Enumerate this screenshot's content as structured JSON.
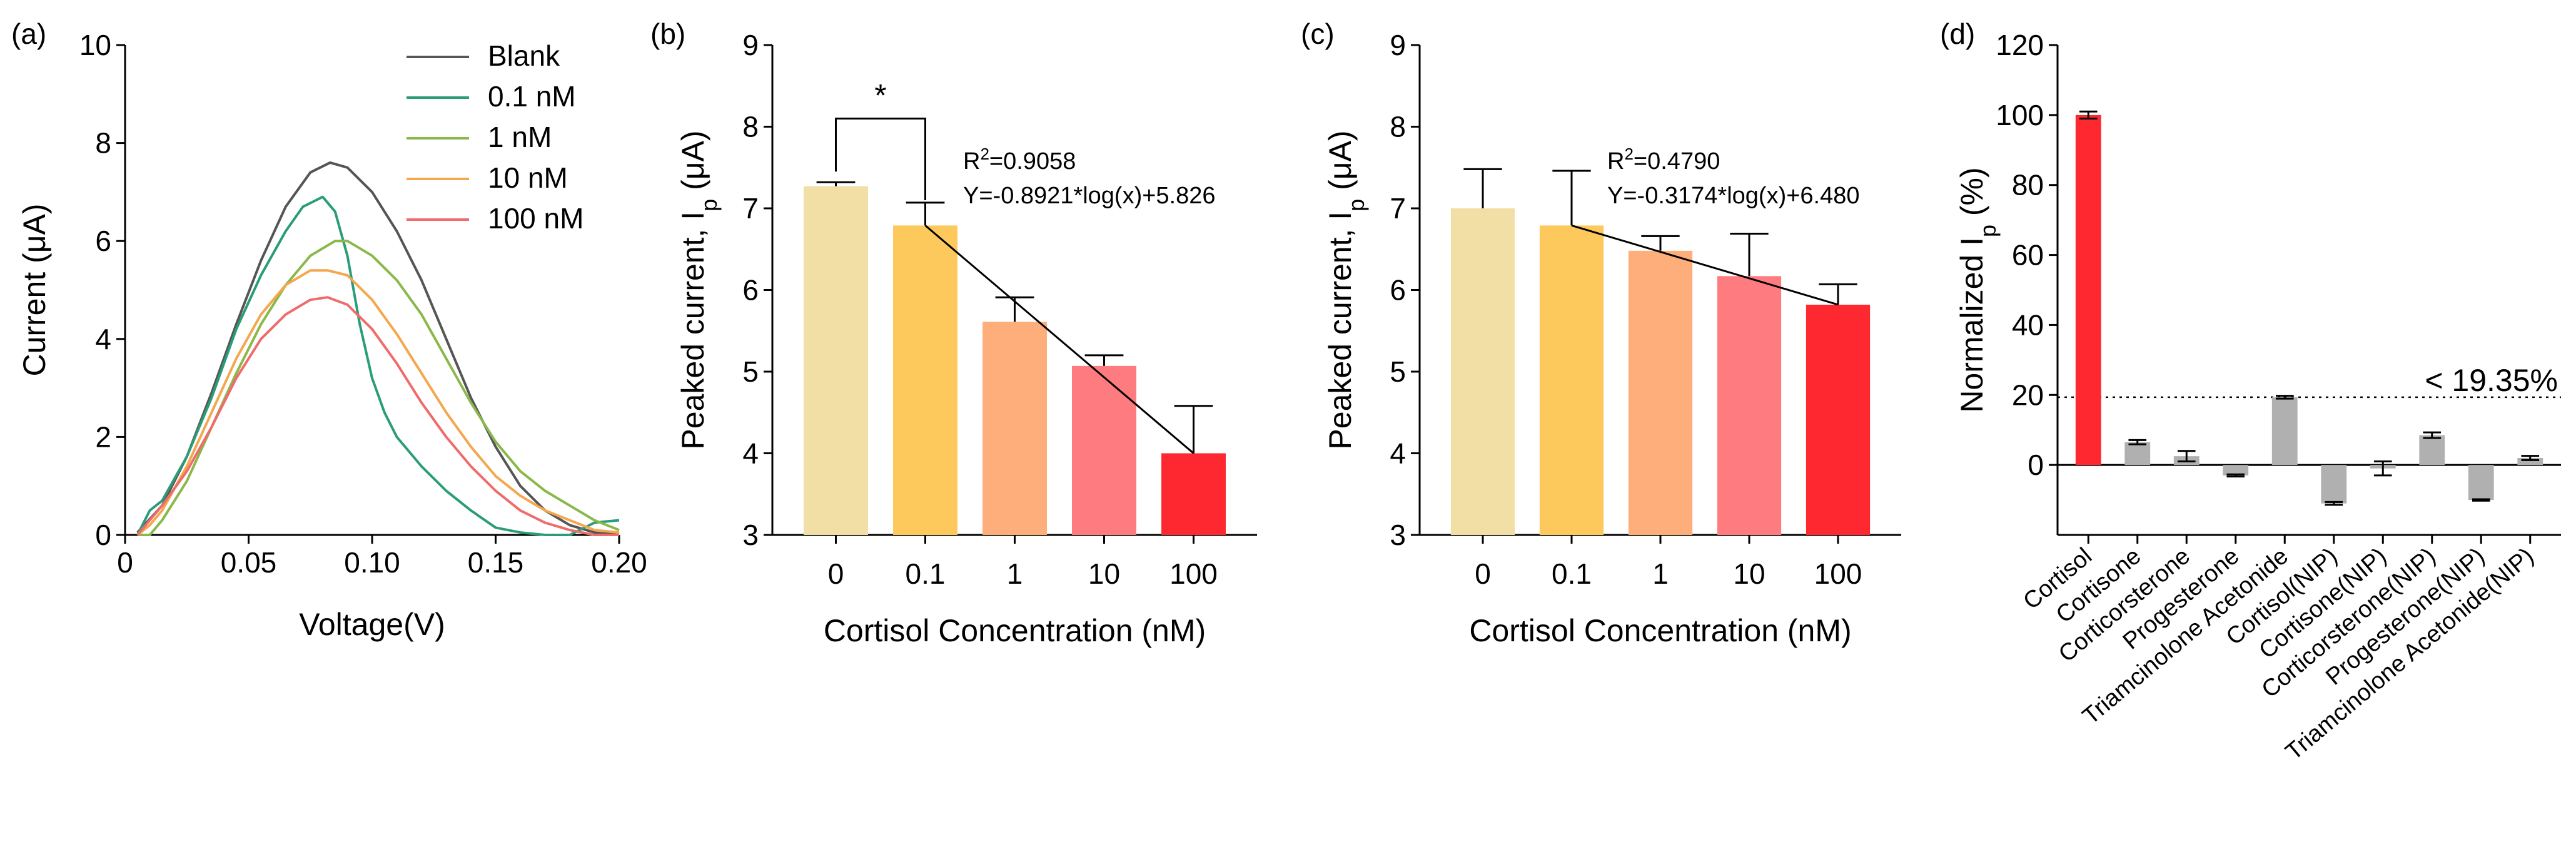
{
  "figure": {
    "panel_labels": [
      "(a)",
      "(b)",
      "(c)",
      "(d)"
    ]
  },
  "chart_data": [
    {
      "id": "a",
      "type": "line",
      "title": "",
      "xlabel": "Voltage(V)",
      "ylabel": "Current (μA)",
      "xlim": [
        0,
        0.2
      ],
      "ylim": [
        0,
        10
      ],
      "xticks": [
        0,
        0.05,
        0.1,
        0.15,
        0.2
      ],
      "xtick_labels": [
        "0",
        "0.05",
        "0.10",
        "0.15",
        "0.20"
      ],
      "yticks": [
        0,
        2,
        4,
        6,
        8,
        10
      ],
      "ytick_labels": [
        "0",
        "2",
        "4",
        "6",
        "8",
        "10"
      ],
      "legend_position": "top-right",
      "series": [
        {
          "name": "Blank",
          "color": "#555555",
          "x": [
            0.005,
            0.015,
            0.025,
            0.035,
            0.045,
            0.055,
            0.065,
            0.075,
            0.083,
            0.09,
            0.1,
            0.11,
            0.12,
            0.13,
            0.14,
            0.15,
            0.16,
            0.17,
            0.18,
            0.19,
            0.2
          ],
          "y": [
            0.05,
            0.6,
            1.6,
            2.9,
            4.3,
            5.6,
            6.7,
            7.4,
            7.6,
            7.5,
            7.0,
            6.2,
            5.2,
            4.0,
            2.8,
            1.8,
            1.0,
            0.5,
            0.2,
            0.05,
            0.0
          ]
        },
        {
          "name": "0.1 nM",
          "color": "#2a9d78",
          "x": [
            0.005,
            0.01,
            0.015,
            0.025,
            0.035,
            0.045,
            0.055,
            0.065,
            0.072,
            0.08,
            0.085,
            0.09,
            0.095,
            0.1,
            0.105,
            0.11,
            0.12,
            0.13,
            0.14,
            0.15,
            0.16,
            0.17,
            0.18,
            0.19,
            0.2
          ],
          "y": [
            0.0,
            0.5,
            0.7,
            1.6,
            2.8,
            4.2,
            5.3,
            6.2,
            6.7,
            6.9,
            6.6,
            5.7,
            4.3,
            3.2,
            2.5,
            2.0,
            1.4,
            0.9,
            0.5,
            0.15,
            0.05,
            0.0,
            0.0,
            0.25,
            0.3
          ]
        },
        {
          "name": "1 nM",
          "color": "#8ab84a",
          "x": [
            0.005,
            0.01,
            0.015,
            0.025,
            0.035,
            0.045,
            0.055,
            0.065,
            0.075,
            0.085,
            0.09,
            0.1,
            0.11,
            0.12,
            0.13,
            0.14,
            0.15,
            0.16,
            0.17,
            0.18,
            0.19,
            0.2
          ],
          "y": [
            0.0,
            0.0,
            0.3,
            1.1,
            2.2,
            3.3,
            4.3,
            5.1,
            5.7,
            6.0,
            6.0,
            5.7,
            5.2,
            4.5,
            3.6,
            2.7,
            1.9,
            1.3,
            0.9,
            0.6,
            0.3,
            0.1
          ]
        },
        {
          "name": "10 nM",
          "color": "#f4a74d",
          "x": [
            0.005,
            0.01,
            0.015,
            0.025,
            0.035,
            0.045,
            0.055,
            0.065,
            0.075,
            0.082,
            0.09,
            0.1,
            0.11,
            0.12,
            0.13,
            0.14,
            0.15,
            0.16,
            0.17,
            0.18,
            0.19,
            0.2
          ],
          "y": [
            0.0,
            0.2,
            0.5,
            1.4,
            2.5,
            3.6,
            4.5,
            5.1,
            5.4,
            5.4,
            5.3,
            4.8,
            4.1,
            3.3,
            2.5,
            1.8,
            1.2,
            0.8,
            0.5,
            0.3,
            0.1,
            0.05
          ]
        },
        {
          "name": "100 nM",
          "color": "#f06b6b",
          "x": [
            0.005,
            0.01,
            0.015,
            0.025,
            0.035,
            0.045,
            0.055,
            0.065,
            0.075,
            0.082,
            0.09,
            0.1,
            0.11,
            0.12,
            0.13,
            0.14,
            0.15,
            0.16,
            0.17,
            0.18,
            0.19,
            0.2
          ],
          "y": [
            0.0,
            0.3,
            0.6,
            1.3,
            2.2,
            3.2,
            4.0,
            4.5,
            4.8,
            4.85,
            4.7,
            4.2,
            3.5,
            2.7,
            2.0,
            1.4,
            0.9,
            0.5,
            0.25,
            0.1,
            0.0,
            0.0
          ]
        }
      ]
    },
    {
      "id": "b",
      "type": "bar",
      "xlabel": "Cortisol Concentration (nM)",
      "ylabel": "Peaked current, I",
      "ylabel_sub": "p",
      "ylabel_unit": " (μA)",
      "ylim": [
        3,
        9
      ],
      "yticks": [
        3,
        4,
        5,
        6,
        7,
        8,
        9
      ],
      "ytick_labels": [
        "3",
        "4",
        "5",
        "6",
        "7",
        "8",
        "9"
      ],
      "categories": [
        "0",
        "0.1",
        "1",
        "10",
        "100"
      ],
      "values": [
        7.27,
        6.79,
        5.61,
        5.07,
        4.0
      ],
      "errors": [
        0.05,
        0.28,
        0.3,
        0.13,
        0.58
      ],
      "colors": [
        "#f2dfa6",
        "#fdc95c",
        "#fdae7a",
        "#fe7c7f",
        "#fe2830"
      ],
      "fit_equation_r2_prefix": "R",
      "fit_equation_r2_sup": "2",
      "fit_equation_r2_value": "=0.9058",
      "fit_equation": "Y=-0.8921*log(x)+5.826",
      "fit_line": {
        "from_category_index": 1,
        "from_value": 6.79,
        "to_category_index": 4,
        "to_value": 4.0
      },
      "significance": {
        "between": [
          0,
          1
        ],
        "label": "*"
      }
    },
    {
      "id": "c",
      "type": "bar",
      "xlabel": "Cortisol Concentration (nM)",
      "ylabel": "Peaked current, I",
      "ylabel_sub": "p",
      "ylabel_unit": " (μA)",
      "ylim": [
        3,
        9
      ],
      "yticks": [
        3,
        4,
        5,
        6,
        7,
        8,
        9
      ],
      "ytick_labels": [
        "3",
        "4",
        "5",
        "6",
        "7",
        "8",
        "9"
      ],
      "categories": [
        "0",
        "0.1",
        "1",
        "10",
        "100"
      ],
      "values": [
        7.0,
        6.79,
        6.48,
        6.17,
        5.82
      ],
      "errors": [
        0.48,
        0.67,
        0.18,
        0.52,
        0.25
      ],
      "colors": [
        "#f2dfa6",
        "#fdc95c",
        "#fdae7a",
        "#fe7c7f",
        "#fe2830"
      ],
      "fit_equation_r2_prefix": "R",
      "fit_equation_r2_sup": "2",
      "fit_equation_r2_value": "=0.4790",
      "fit_equation": "Y=-0.3174*log(x)+6.480",
      "fit_line": {
        "from_category_index": 1,
        "from_value": 6.79,
        "to_category_index": 4,
        "to_value": 5.82
      }
    },
    {
      "id": "d",
      "type": "bar",
      "xlabel": "",
      "ylabel": "Normalized I",
      "ylabel_sub": "p",
      "ylabel_unit": " (%)",
      "ylim": [
        -20,
        120
      ],
      "yticks": [
        0,
        20,
        40,
        60,
        80,
        100,
        120
      ],
      "ytick_labels": [
        "0",
        "20",
        "40",
        "60",
        "80",
        "100",
        "120"
      ],
      "categories": [
        "Cortisol",
        "Cortisone",
        "Corticorsterone",
        "Progesterone",
        "Triamcinolone Acetonide",
        "Cortisol(NIP)",
        "Cortisone(NIP)",
        "Corticorsterone(NIP)",
        "Progesterone(NIP)",
        "Triamcinolone Acetonide(NIP)"
      ],
      "values": [
        100,
        6.5,
        2.5,
        -3,
        19.35,
        -11,
        -1,
        8.5,
        -10,
        2
      ],
      "errors": [
        1.0,
        0.6,
        1.5,
        0.3,
        0.4,
        0.4,
        2.0,
        0.8,
        0.2,
        0.6
      ],
      "colors": [
        "#fe2830",
        "#b0b0b0",
        "#b0b0b0",
        "#b0b0b0",
        "#b0b0b0",
        "#b0b0b0",
        "#b0b0b0",
        "#b0b0b0",
        "#b0b0b0",
        "#b0b0b0"
      ],
      "threshold": 19.35,
      "threshold_label": "<  19.35%"
    }
  ]
}
